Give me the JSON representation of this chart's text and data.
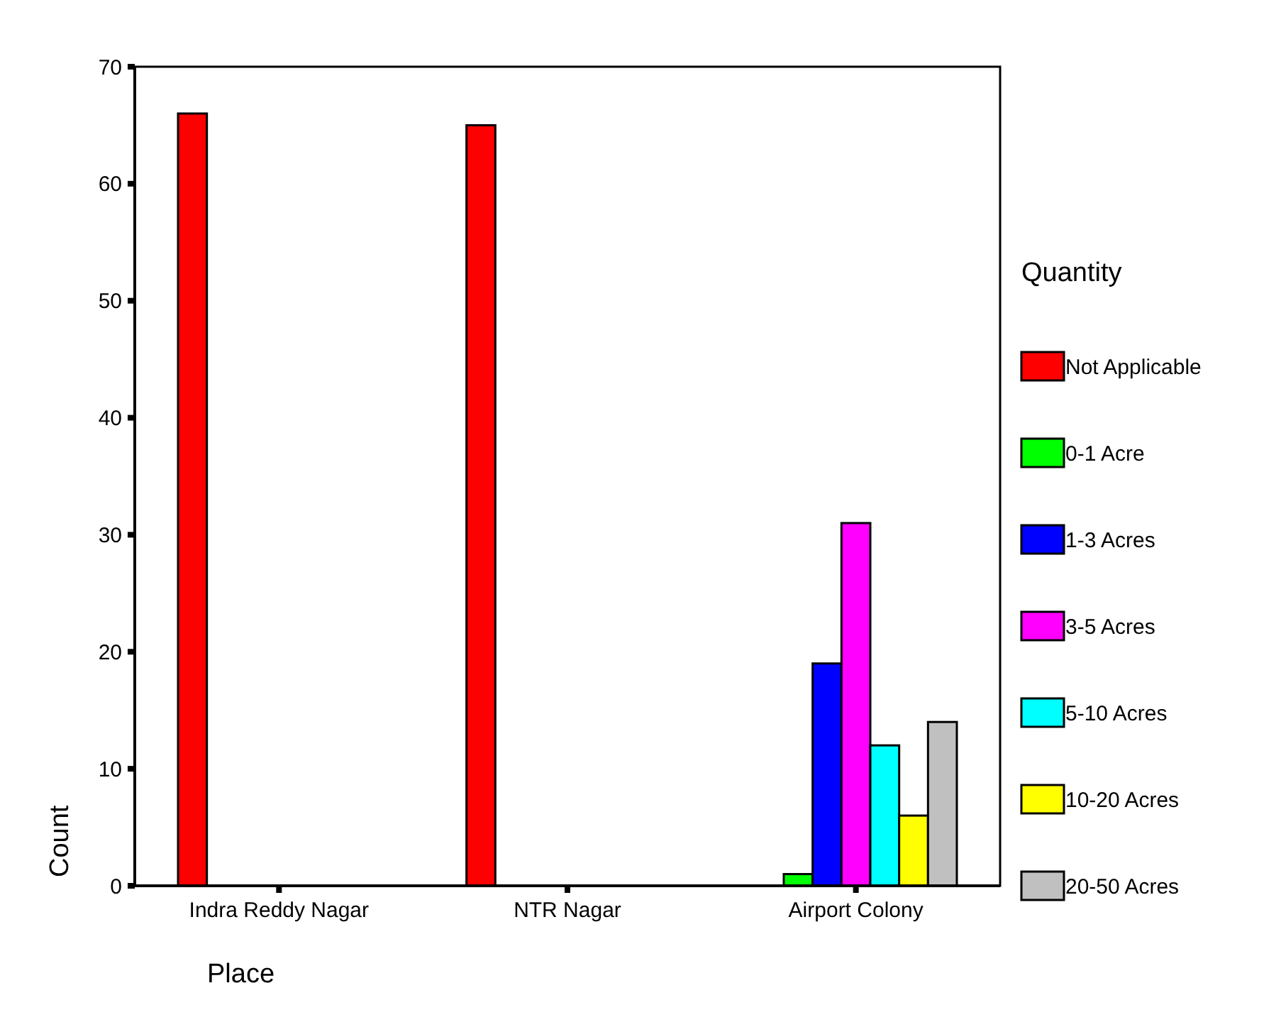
{
  "chart_data": {
    "type": "bar",
    "xlabel": "Place",
    "ylabel": "Count",
    "legend_title": "Quantity",
    "legend": "right",
    "categories": [
      "Indra Reddy Nagar",
      "NTR Nagar",
      "Airport Colony"
    ],
    "ylim": [
      0,
      70
    ],
    "yticks": [
      0,
      10,
      20,
      30,
      40,
      50,
      60,
      70
    ],
    "series": [
      {
        "name": "Not Applicable",
        "color": "#ff0000",
        "values": [
          66,
          65,
          0
        ]
      },
      {
        "name": "0-1 Acre",
        "color": "#00ff00",
        "values": [
          0,
          0,
          1
        ]
      },
      {
        "name": "1-3 Acres",
        "color": "#0000ff",
        "values": [
          0,
          0,
          19
        ]
      },
      {
        "name": "3-5 Acres",
        "color": "#ff00ff",
        "values": [
          0,
          0,
          31
        ]
      },
      {
        "name": "5-10 Acres",
        "color": "#00ffff",
        "values": [
          0,
          0,
          12
        ]
      },
      {
        "name": "10-20 Acres",
        "color": "#ffff00",
        "values": [
          0,
          0,
          6
        ]
      },
      {
        "name": "20-50 Acres",
        "color": "#c0c0c0",
        "values": [
          0,
          0,
          14
        ]
      }
    ]
  }
}
